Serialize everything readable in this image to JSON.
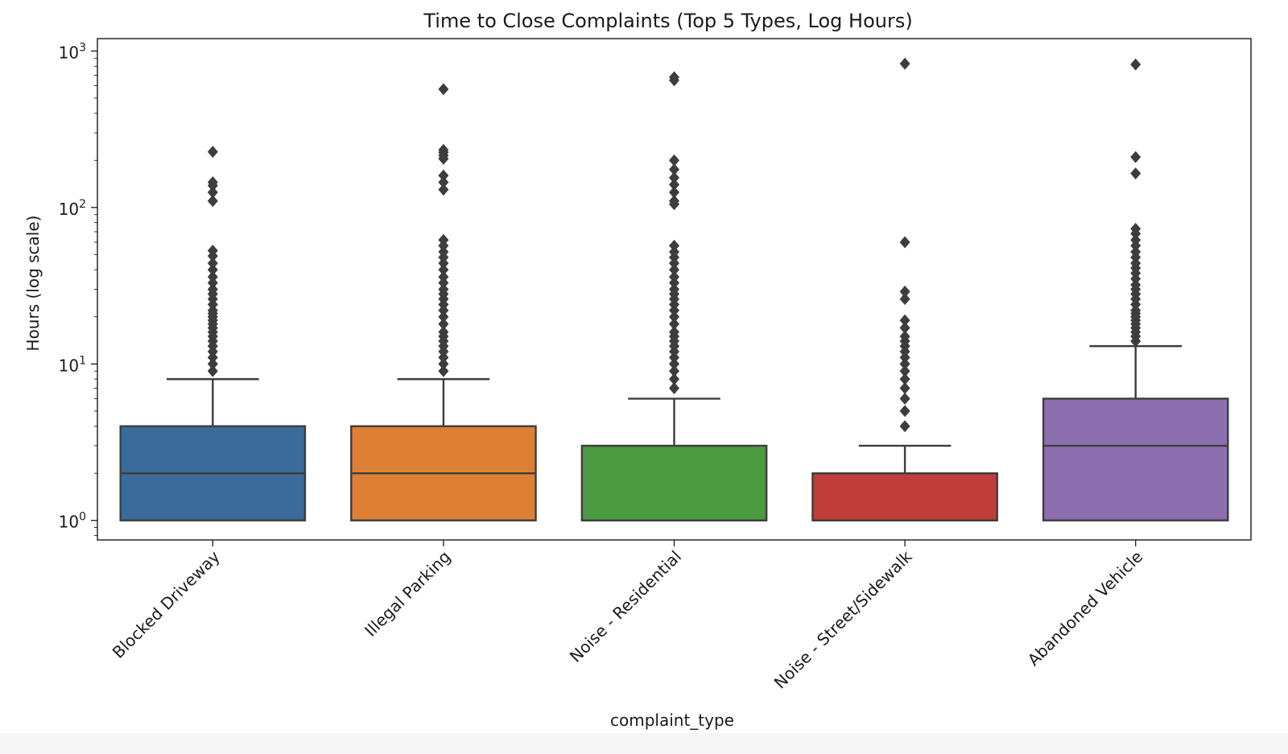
{
  "chart_data": {
    "type": "box",
    "title": "Time to Close Complaints (Top 5 Types, Log Hours)",
    "xlabel": "complaint_type",
    "ylabel": "Hours (log scale)",
    "y_scale": "log",
    "ylim": [
      0.75,
      1200
    ],
    "y_ticks": [
      {
        "value": 1,
        "base": "10",
        "exp": "0"
      },
      {
        "value": 10,
        "base": "10",
        "exp": "1"
      },
      {
        "value": 100,
        "base": "10",
        "exp": "2"
      },
      {
        "value": 1000,
        "base": "10",
        "exp": "3"
      }
    ],
    "grid": false,
    "categories": [
      "Blocked Driveway",
      "Illegal Parking",
      "Noise - Residential",
      "Noise - Street/Sidewalk",
      "Abandoned Vehicle"
    ],
    "boxes": [
      {
        "category": "Blocked Driveway",
        "color": "#3a6b9b",
        "min": 1,
        "q1": 1,
        "median": 2,
        "q3": 4,
        "whisker_high": 8,
        "outliers": [
          9,
          10,
          11,
          12,
          13,
          14,
          15,
          16,
          17,
          18,
          19,
          20,
          21,
          22,
          24,
          26,
          28,
          30,
          33,
          36,
          40,
          44,
          49,
          53,
          110,
          125,
          138,
          145,
          227
        ]
      },
      {
        "category": "Illegal Parking",
        "color": "#dd7f34",
        "min": 1,
        "q1": 1,
        "median": 2,
        "q3": 4,
        "whisker_high": 8,
        "outliers": [
          9,
          10,
          11,
          12,
          13,
          14,
          15,
          16,
          18,
          20,
          22,
          24,
          26,
          28,
          30,
          33,
          36,
          40,
          44,
          48,
          52,
          57,
          62,
          130,
          145,
          160,
          205,
          215,
          225,
          233,
          570
        ]
      },
      {
        "category": "Noise - Residential",
        "color": "#4b9a42",
        "min": 1,
        "q1": 1,
        "median": 1,
        "q3": 3,
        "whisker_high": 6,
        "outliers": [
          7,
          8,
          9,
          10,
          11,
          12,
          13,
          14,
          15,
          16,
          18,
          20,
          22,
          24,
          26,
          28,
          30,
          33,
          36,
          40,
          44,
          48,
          52,
          57,
          105,
          110,
          125,
          140,
          155,
          175,
          200,
          650,
          680
        ]
      },
      {
        "category": "Noise - Street/Sidewalk",
        "color": "#c03d3a",
        "min": 1,
        "q1": 1,
        "median": 1,
        "q3": 2,
        "whisker_high": 3,
        "outliers": [
          4,
          5,
          6,
          7,
          8,
          9,
          10,
          11,
          12,
          13,
          14,
          15,
          17,
          19,
          26,
          29,
          60,
          830
        ]
      },
      {
        "category": "Abandoned Vehicle",
        "color": "#8d6fb0",
        "min": 1,
        "q1": 1,
        "median": 3,
        "q3": 6,
        "whisker_high": 13,
        "outliers": [
          14,
          15,
          16,
          17,
          18,
          19,
          20,
          21,
          22,
          24,
          26,
          28,
          30,
          32,
          35,
          38,
          41,
          44,
          48,
          52,
          57,
          62,
          68,
          73,
          165,
          210,
          820
        ]
      }
    ]
  }
}
